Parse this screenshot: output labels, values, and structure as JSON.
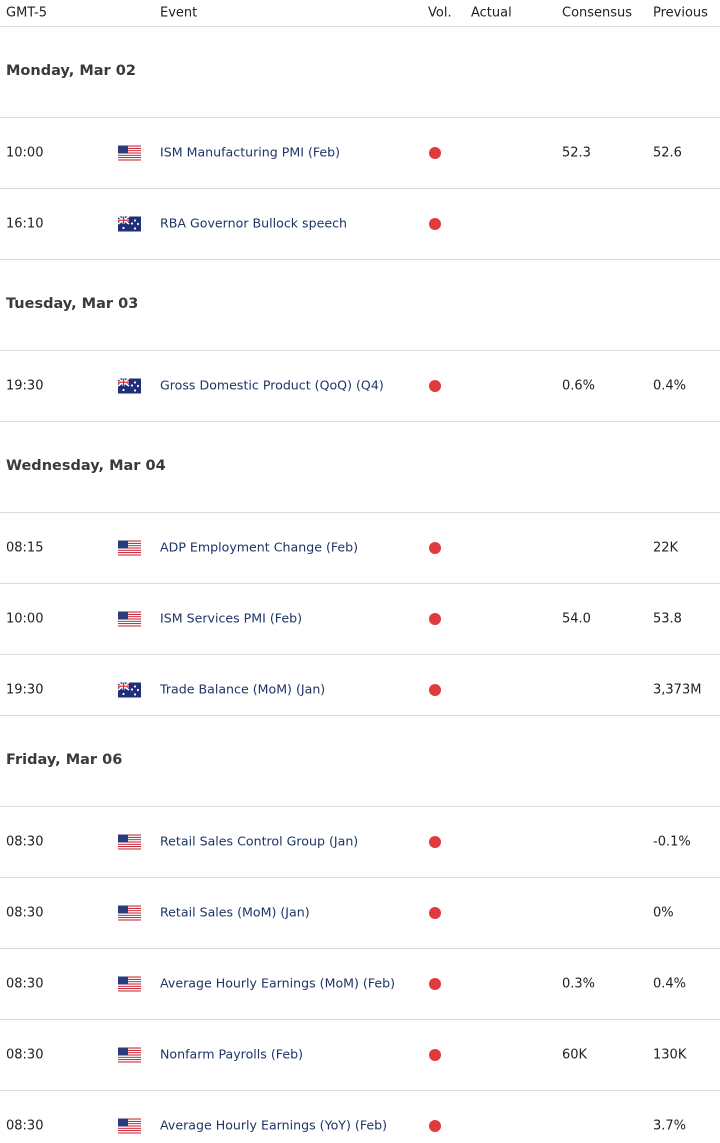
{
  "header": {
    "time_zone": "GMT-5",
    "event": "Event",
    "volatility": "Vol.",
    "actual": "Actual",
    "consensus": "Consensus",
    "previous": "Previous"
  },
  "days": [
    {
      "label": "Monday, Mar 02",
      "events": [
        {
          "time": "10:00",
          "event": "ISM Manufacturing PMI (Feb)",
          "consensus": "52.3",
          "previous": "52.6"
        },
        {
          "time": "16:10",
          "event": "RBA Governor Bullock speech"
        }
      ]
    },
    {
      "label": "Tuesday, Mar 03",
      "events": [
        {
          "time": "19:30",
          "event": "Gross Domestic Product (QoQ) (Q4)",
          "consensus": "0.6%",
          "previous": "0.4%"
        }
      ]
    },
    {
      "label": "Wednesday, Mar 04",
      "events": [
        {
          "time": "08:15",
          "event": "ADP Employment Change (Feb)",
          "previous": "22K"
        },
        {
          "time": "10:00",
          "event": "ISM Services PMI (Feb)",
          "consensus": "54.0",
          "previous": "53.8"
        },
        {
          "time": "19:30",
          "event": "Trade Balance (MoM) (Jan)",
          "previous": "3,373M"
        }
      ]
    },
    {
      "label": "Friday, Mar 06",
      "events": [
        {
          "time": "08:30",
          "event": "Retail Sales Control Group (Jan)",
          "previous": "-0.1%"
        },
        {
          "time": "08:30",
          "event": "Retail Sales (MoM) (Jan)",
          "previous": "0%"
        },
        {
          "time": "08:30",
          "event": "Average Hourly Earnings (MoM) (Feb)",
          "consensus": "0.3%",
          "previous": "0.4%"
        },
        {
          "time": "08:30",
          "event": "Nonfarm Payrolls (Feb)",
          "consensus": "60K",
          "previous": "130K"
        },
        {
          "time": "08:30",
          "event": "Average Hourly Earnings (YoY) (Feb)",
          "previous": "3.7%"
        }
      ]
    }
  ]
}
